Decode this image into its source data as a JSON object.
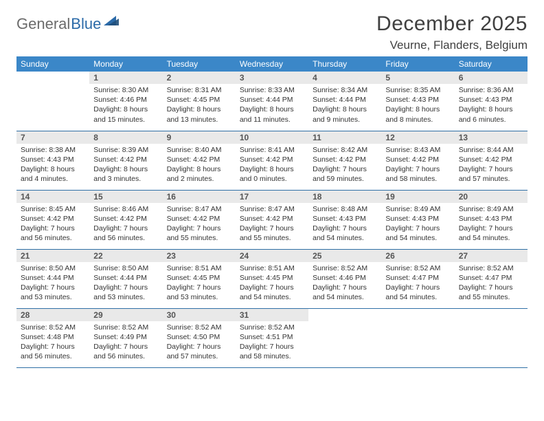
{
  "brand": {
    "part1": "General",
    "part2": "Blue"
  },
  "title": "December 2025",
  "location": "Veurne, Flanders, Belgium",
  "colors": {
    "header_bg": "#3b87c8",
    "header_text": "#ffffff",
    "daynum_bg": "#e9e9e9",
    "row_border": "#2f6fa6",
    "brand_gray": "#6b6b6b",
    "brand_blue": "#2b6aa8",
    "text": "#333333",
    "background": "#ffffff",
    "title_color": "#404040"
  },
  "typography": {
    "title_fontsize": 30,
    "location_fontsize": 17,
    "logo_fontsize": 22,
    "header_fontsize": 12,
    "daynum_fontsize": 12,
    "body_fontsize": 10.5,
    "font_family": "Arial"
  },
  "weekdays": [
    "Sunday",
    "Monday",
    "Tuesday",
    "Wednesday",
    "Thursday",
    "Friday",
    "Saturday"
  ],
  "weeks": [
    [
      {
        "n": "",
        "sr": "",
        "ss": "",
        "dl": ""
      },
      {
        "n": "1",
        "sr": "Sunrise: 8:30 AM",
        "ss": "Sunset: 4:46 PM",
        "dl": "Daylight: 8 hours and 15 minutes."
      },
      {
        "n": "2",
        "sr": "Sunrise: 8:31 AM",
        "ss": "Sunset: 4:45 PM",
        "dl": "Daylight: 8 hours and 13 minutes."
      },
      {
        "n": "3",
        "sr": "Sunrise: 8:33 AM",
        "ss": "Sunset: 4:44 PM",
        "dl": "Daylight: 8 hours and 11 minutes."
      },
      {
        "n": "4",
        "sr": "Sunrise: 8:34 AM",
        "ss": "Sunset: 4:44 PM",
        "dl": "Daylight: 8 hours and 9 minutes."
      },
      {
        "n": "5",
        "sr": "Sunrise: 8:35 AM",
        "ss": "Sunset: 4:43 PM",
        "dl": "Daylight: 8 hours and 8 minutes."
      },
      {
        "n": "6",
        "sr": "Sunrise: 8:36 AM",
        "ss": "Sunset: 4:43 PM",
        "dl": "Daylight: 8 hours and 6 minutes."
      }
    ],
    [
      {
        "n": "7",
        "sr": "Sunrise: 8:38 AM",
        "ss": "Sunset: 4:43 PM",
        "dl": "Daylight: 8 hours and 4 minutes."
      },
      {
        "n": "8",
        "sr": "Sunrise: 8:39 AM",
        "ss": "Sunset: 4:42 PM",
        "dl": "Daylight: 8 hours and 3 minutes."
      },
      {
        "n": "9",
        "sr": "Sunrise: 8:40 AM",
        "ss": "Sunset: 4:42 PM",
        "dl": "Daylight: 8 hours and 2 minutes."
      },
      {
        "n": "10",
        "sr": "Sunrise: 8:41 AM",
        "ss": "Sunset: 4:42 PM",
        "dl": "Daylight: 8 hours and 0 minutes."
      },
      {
        "n": "11",
        "sr": "Sunrise: 8:42 AM",
        "ss": "Sunset: 4:42 PM",
        "dl": "Daylight: 7 hours and 59 minutes."
      },
      {
        "n": "12",
        "sr": "Sunrise: 8:43 AM",
        "ss": "Sunset: 4:42 PM",
        "dl": "Daylight: 7 hours and 58 minutes."
      },
      {
        "n": "13",
        "sr": "Sunrise: 8:44 AM",
        "ss": "Sunset: 4:42 PM",
        "dl": "Daylight: 7 hours and 57 minutes."
      }
    ],
    [
      {
        "n": "14",
        "sr": "Sunrise: 8:45 AM",
        "ss": "Sunset: 4:42 PM",
        "dl": "Daylight: 7 hours and 56 minutes."
      },
      {
        "n": "15",
        "sr": "Sunrise: 8:46 AM",
        "ss": "Sunset: 4:42 PM",
        "dl": "Daylight: 7 hours and 56 minutes."
      },
      {
        "n": "16",
        "sr": "Sunrise: 8:47 AM",
        "ss": "Sunset: 4:42 PM",
        "dl": "Daylight: 7 hours and 55 minutes."
      },
      {
        "n": "17",
        "sr": "Sunrise: 8:47 AM",
        "ss": "Sunset: 4:42 PM",
        "dl": "Daylight: 7 hours and 55 minutes."
      },
      {
        "n": "18",
        "sr": "Sunrise: 8:48 AM",
        "ss": "Sunset: 4:43 PM",
        "dl": "Daylight: 7 hours and 54 minutes."
      },
      {
        "n": "19",
        "sr": "Sunrise: 8:49 AM",
        "ss": "Sunset: 4:43 PM",
        "dl": "Daylight: 7 hours and 54 minutes."
      },
      {
        "n": "20",
        "sr": "Sunrise: 8:49 AM",
        "ss": "Sunset: 4:43 PM",
        "dl": "Daylight: 7 hours and 54 minutes."
      }
    ],
    [
      {
        "n": "21",
        "sr": "Sunrise: 8:50 AM",
        "ss": "Sunset: 4:44 PM",
        "dl": "Daylight: 7 hours and 53 minutes."
      },
      {
        "n": "22",
        "sr": "Sunrise: 8:50 AM",
        "ss": "Sunset: 4:44 PM",
        "dl": "Daylight: 7 hours and 53 minutes."
      },
      {
        "n": "23",
        "sr": "Sunrise: 8:51 AM",
        "ss": "Sunset: 4:45 PM",
        "dl": "Daylight: 7 hours and 53 minutes."
      },
      {
        "n": "24",
        "sr": "Sunrise: 8:51 AM",
        "ss": "Sunset: 4:45 PM",
        "dl": "Daylight: 7 hours and 54 minutes."
      },
      {
        "n": "25",
        "sr": "Sunrise: 8:52 AM",
        "ss": "Sunset: 4:46 PM",
        "dl": "Daylight: 7 hours and 54 minutes."
      },
      {
        "n": "26",
        "sr": "Sunrise: 8:52 AM",
        "ss": "Sunset: 4:47 PM",
        "dl": "Daylight: 7 hours and 54 minutes."
      },
      {
        "n": "27",
        "sr": "Sunrise: 8:52 AM",
        "ss": "Sunset: 4:47 PM",
        "dl": "Daylight: 7 hours and 55 minutes."
      }
    ],
    [
      {
        "n": "28",
        "sr": "Sunrise: 8:52 AM",
        "ss": "Sunset: 4:48 PM",
        "dl": "Daylight: 7 hours and 56 minutes."
      },
      {
        "n": "29",
        "sr": "Sunrise: 8:52 AM",
        "ss": "Sunset: 4:49 PM",
        "dl": "Daylight: 7 hours and 56 minutes."
      },
      {
        "n": "30",
        "sr": "Sunrise: 8:52 AM",
        "ss": "Sunset: 4:50 PM",
        "dl": "Daylight: 7 hours and 57 minutes."
      },
      {
        "n": "31",
        "sr": "Sunrise: 8:52 AM",
        "ss": "Sunset: 4:51 PM",
        "dl": "Daylight: 7 hours and 58 minutes."
      },
      {
        "n": "",
        "sr": "",
        "ss": "",
        "dl": ""
      },
      {
        "n": "",
        "sr": "",
        "ss": "",
        "dl": ""
      },
      {
        "n": "",
        "sr": "",
        "ss": "",
        "dl": ""
      }
    ]
  ]
}
